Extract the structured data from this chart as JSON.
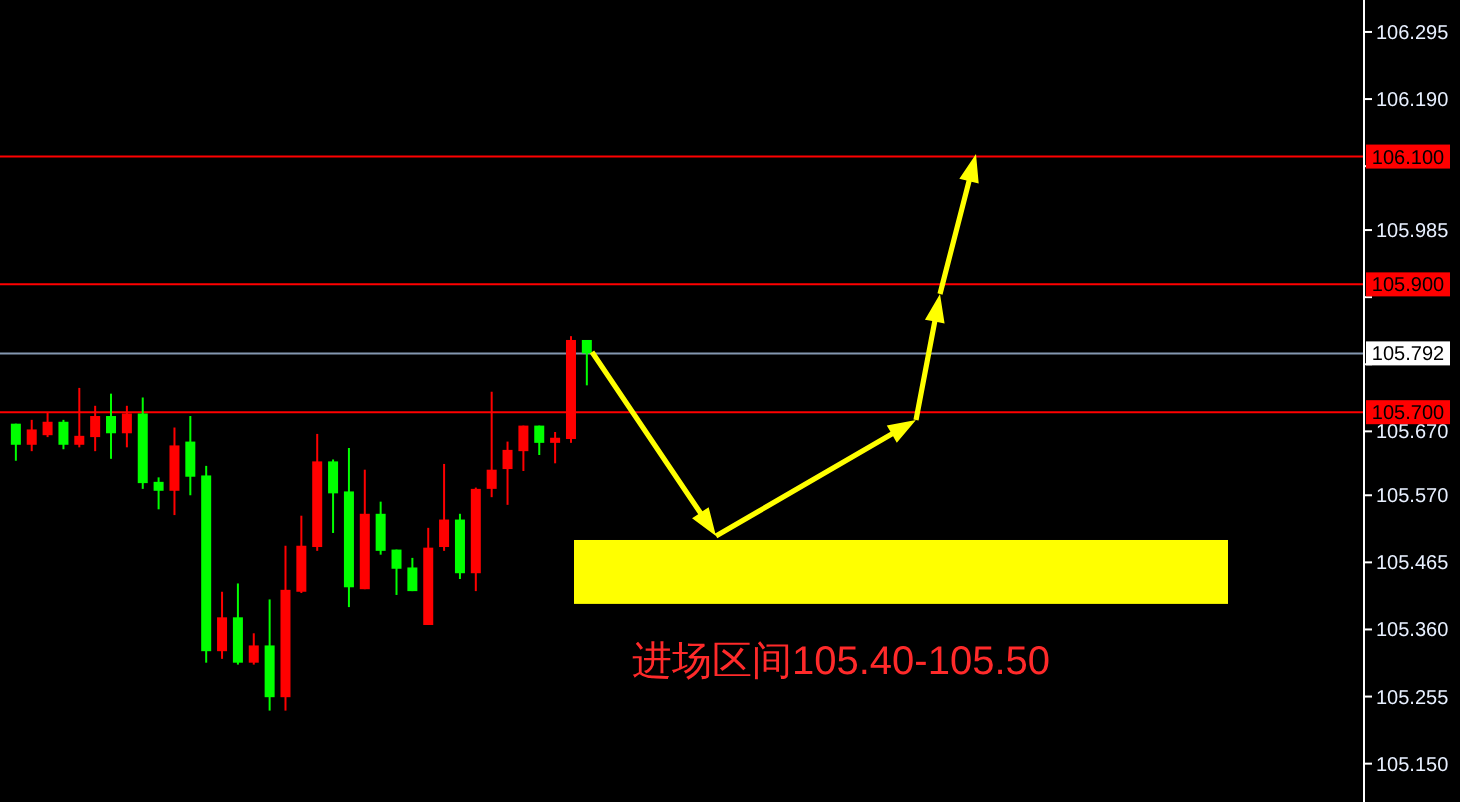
{
  "chart_data": {
    "type": "candlestick",
    "categories": [
      null,
      null,
      null,
      null,
      null,
      null,
      null,
      null,
      null,
      null,
      null,
      null,
      null,
      null,
      null,
      null,
      null,
      null,
      null,
      null,
      null,
      null,
      null,
      null,
      null,
      null,
      null,
      null,
      null,
      null,
      null,
      null,
      null,
      null,
      null,
      null,
      null,
      null,
      null,
      null,
      null,
      null,
      null,
      null,
      null,
      null,
      null,
      null,
      null,
      null,
      null,
      null,
      null,
      null,
      null,
      null,
      null,
      null,
      null,
      null,
      null,
      null,
      null,
      null,
      null,
      null,
      null,
      null,
      null,
      null,
      null,
      null,
      null,
      null,
      null,
      null,
      null,
      null,
      null,
      null,
      null,
      null,
      null,
      null,
      null
    ],
    "ohlc": [
      [
        105.682,
        105.682,
        105.624,
        105.649
      ],
      [
        105.649,
        105.688,
        105.639,
        105.673
      ],
      [
        105.664,
        105.699,
        105.661,
        105.685
      ],
      [
        105.685,
        105.688,
        105.642,
        105.649
      ],
      [
        105.649,
        105.738,
        105.645,
        105.663
      ],
      [
        105.661,
        105.71,
        105.639,
        105.694
      ],
      [
        105.694,
        105.729,
        105.627,
        105.667
      ],
      [
        105.667,
        105.71,
        105.645,
        105.698
      ],
      [
        105.698,
        105.723,
        105.58,
        105.589
      ],
      [
        105.591,
        105.598,
        105.548,
        105.577
      ],
      [
        105.577,
        105.676,
        105.539,
        105.648
      ],
      [
        105.654,
        105.694,
        105.57,
        105.599
      ],
      [
        105.601,
        105.616,
        105.308,
        105.326
      ],
      [
        105.326,
        105.419,
        105.314,
        105.379
      ],
      [
        105.379,
        105.432,
        105.305,
        105.308
      ],
      [
        105.308,
        105.354,
        105.305,
        105.335
      ],
      [
        105.335,
        105.407,
        105.233,
        105.254
      ],
      [
        105.254,
        105.491,
        105.233,
        105.422
      ],
      [
        105.419,
        105.538,
        105.417,
        105.491
      ],
      [
        105.489,
        105.666,
        105.483,
        105.623
      ],
      [
        105.623,
        105.626,
        105.511,
        105.573
      ],
      [
        105.576,
        105.644,
        105.395,
        105.426
      ],
      [
        105.423,
        105.61,
        105.423,
        105.541
      ],
      [
        105.541,
        105.56,
        105.477,
        105.483
      ],
      [
        105.485,
        105.485,
        105.414,
        105.455
      ],
      [
        105.457,
        105.472,
        105.42,
        105.42
      ],
      [
        105.367,
        105.519,
        105.367,
        105.488
      ],
      [
        105.489,
        105.619,
        105.483,
        105.532
      ],
      [
        105.532,
        105.541,
        105.439,
        105.448
      ],
      [
        105.448,
        105.582,
        105.42,
        105.58
      ],
      [
        105.58,
        105.732,
        105.567,
        105.61
      ],
      [
        105.611,
        105.654,
        105.555,
        105.641
      ],
      [
        105.639,
        105.679,
        105.608,
        105.679
      ],
      [
        105.679,
        105.679,
        105.633,
        105.652
      ],
      [
        105.652,
        105.669,
        105.62,
        105.66
      ],
      [
        105.658,
        105.819,
        105.652,
        105.813
      ],
      [
        105.813,
        105.813,
        105.742,
        105.792
      ],
      null,
      null,
      null,
      null,
      null,
      null,
      null,
      null,
      null,
      null,
      null,
      null,
      null,
      null,
      null,
      null,
      null,
      null,
      null,
      null,
      null,
      null,
      null,
      null,
      null,
      null,
      null,
      null,
      null,
      null,
      null,
      null,
      null,
      null,
      null,
      null,
      null,
      null,
      null,
      null,
      null,
      null,
      null,
      null,
      null,
      null,
      null,
      null
    ],
    "colors": [
      "#00ff00",
      "#ff0000",
      "#ff0000",
      "#00ff00",
      "#ff0000",
      "#ff0000",
      "#00ff00",
      "#ff0000",
      "#00ff00",
      "#00ff00",
      "#ff0000",
      "#00ff00",
      "#00ff00",
      "#ff0000",
      "#00ff00",
      "#ff0000",
      "#00ff00",
      "#ff0000",
      "#ff0000",
      "#ff0000",
      "#00ff00",
      "#00ff00",
      "#ff0000",
      "#00ff00",
      "#00ff00",
      "#00ff00",
      "#ff0000",
      "#ff0000",
      "#00ff00",
      "#ff0000",
      "#ff0000",
      "#ff0000",
      "#ff0000",
      "#00ff00",
      "#ff0000",
      "#ff0000",
      "#00ff00",
      null,
      null,
      null,
      null,
      null,
      null,
      null,
      null,
      null,
      null,
      null,
      null,
      null,
      null,
      null,
      null,
      null,
      null,
      null,
      null,
      null,
      null,
      null,
      null,
      null,
      null,
      null,
      null,
      null,
      null,
      null,
      null,
      null,
      null,
      null,
      null,
      null,
      null,
      null,
      null,
      null,
      null,
      null,
      null,
      null,
      null,
      null,
      null
    ],
    "ylim": [
      105.09,
      106.345
    ],
    "yticks": [
      106.295,
      {
        "value": 106.19,
        "label": "106.190"
      },
      {
        "value": 106.085,
        "label": null
      },
      105.985,
      {
        "value": 105.88,
        "label": null
      },
      {
        "value": 105.775,
        "label": null
      },
      {
        "value": 105.67,
        "label": "105.670"
      },
      {
        "value": 105.57,
        "label": "105.570"
      },
      105.465,
      {
        "value": 105.36,
        "label": "105.360"
      },
      105.255,
      {
        "value": 105.15,
        "label": "105.150"
      }
    ],
    "ref_lines": [
      {
        "axis": "y",
        "value": 106.1,
        "label": "106.100",
        "color": "#ff0000"
      },
      {
        "axis": "y",
        "value": 105.9,
        "label": "105.900",
        "color": "#ff0000"
      },
      {
        "axis": "y",
        "value": 105.792,
        "label": "105.792",
        "color": "#8497b0"
      },
      {
        "axis": "y",
        "value": 105.7,
        "label": "105.700",
        "color": "#ff0000"
      }
    ],
    "bands": [
      {
        "axis": "y",
        "from": 105.4,
        "to": 105.5,
        "label": "进场区间105.40-105.50",
        "color": "#ffff00"
      }
    ],
    "grid": false
  }
}
